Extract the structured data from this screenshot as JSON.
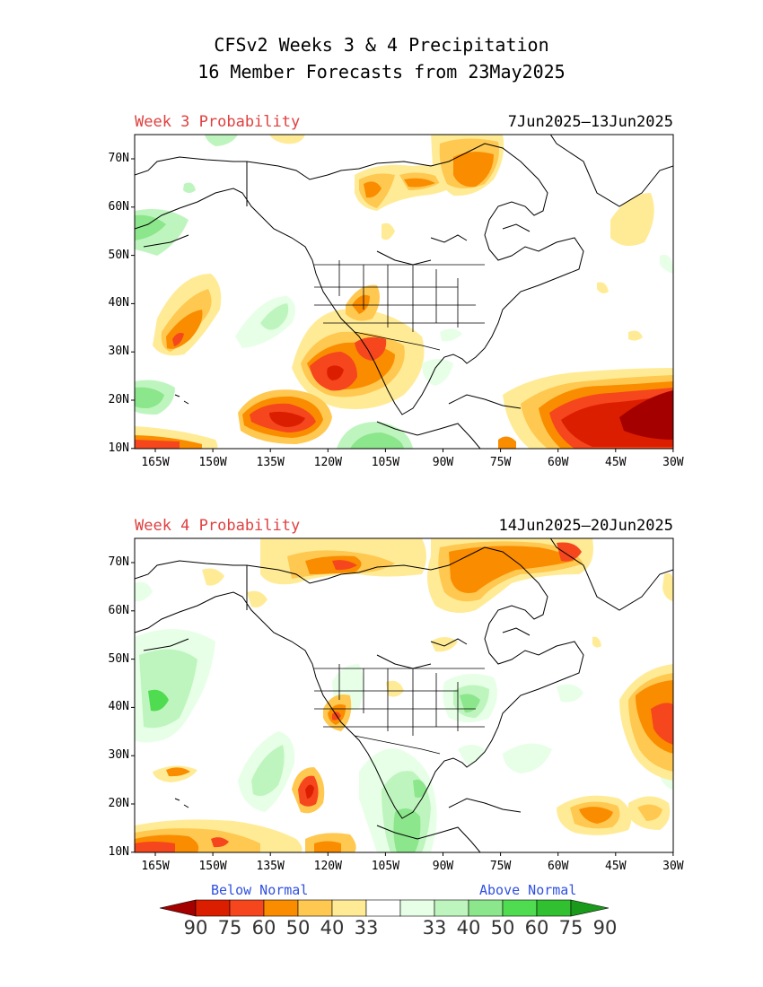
{
  "header": {
    "title_line1": "CFSv2 Weeks 3 & 4 Precipitation",
    "title_line2": "16 Member Forecasts from 23May2025"
  },
  "panels": [
    {
      "label": "Week 3 Probability",
      "dates": "7Jun2025—13Jun2025"
    },
    {
      "label": "Week 4 Probability",
      "dates": "14Jun2025—20Jun2025"
    }
  ],
  "axes": {
    "lat_ticks": [
      "70N",
      "60N",
      "50N",
      "40N",
      "30N",
      "20N",
      "10N"
    ],
    "lon_ticks": [
      "165W",
      "150W",
      "135W",
      "120W",
      "105W",
      "90W",
      "75W",
      "60W",
      "45W",
      "30W"
    ]
  },
  "legend": {
    "below_label": "Below Normal",
    "above_label": "Above Normal",
    "values": [
      "90",
      "75",
      "60",
      "50",
      "40",
      "33",
      "33",
      "40",
      "50",
      "60",
      "75",
      "90"
    ],
    "colors": [
      "#a50000",
      "#dc1e00",
      "#f5461e",
      "#fa8c00",
      "#ffc850",
      "#ffeb96",
      "#ffffff",
      "#e6ffe6",
      "#bef5be",
      "#8ce68c",
      "#50dc50",
      "#30c030",
      "#1a9a1a"
    ]
  }
}
